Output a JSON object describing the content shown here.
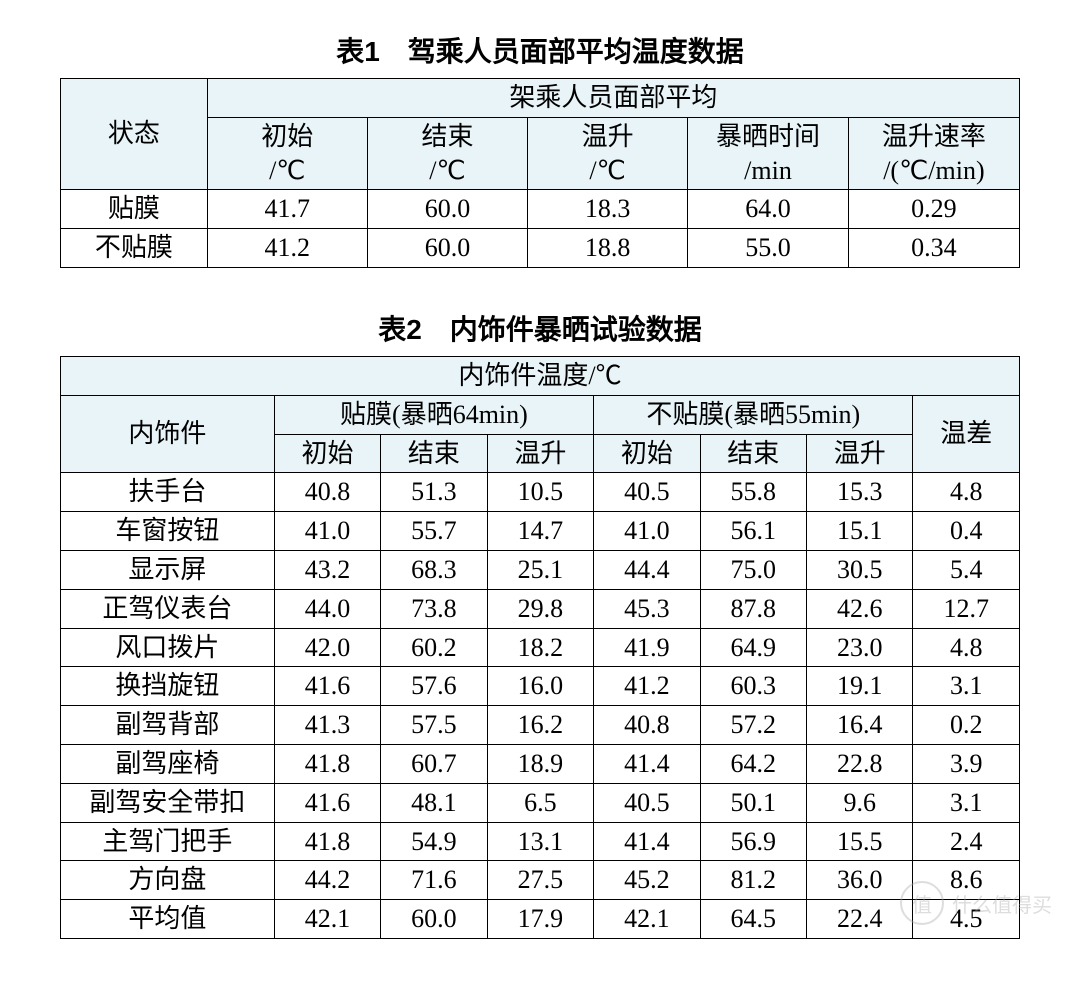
{
  "table1": {
    "title": "表1　驾乘人员面部平均温度数据",
    "header_state": "状态",
    "header_group": "架乘人员面部平均",
    "cols": [
      {
        "l1": "初始",
        "l2": "/℃"
      },
      {
        "l1": "结束",
        "l2": "/℃"
      },
      {
        "l1": "温升",
        "l2": "/℃"
      },
      {
        "l1": "暴晒时间",
        "l2": "/min"
      },
      {
        "l1": "温升速率",
        "l2": "/(℃/min)"
      }
    ],
    "rows": [
      {
        "state": "贴膜",
        "v": [
          "41.7",
          "60.0",
          "18.3",
          "64.0",
          "0.29"
        ]
      },
      {
        "state": "不贴膜",
        "v": [
          "41.2",
          "60.0",
          "18.8",
          "55.0",
          "0.34"
        ]
      }
    ]
  },
  "table2": {
    "title": "表2　内饰件暴晒试验数据",
    "header_group": "内饰件温度/℃",
    "header_item": "内饰件",
    "header_film": "贴膜(暴晒64min)",
    "header_nofilm": "不贴膜(暴晒55min)",
    "header_diff": "温差",
    "subcols": [
      "初始",
      "结束",
      "温升"
    ],
    "rows": [
      {
        "item": "扶手台",
        "a": [
          "40.8",
          "51.3",
          "10.5"
        ],
        "b": [
          "40.5",
          "55.8",
          "15.3"
        ],
        "d": "4.8"
      },
      {
        "item": "车窗按钮",
        "a": [
          "41.0",
          "55.7",
          "14.7"
        ],
        "b": [
          "41.0",
          "56.1",
          "15.1"
        ],
        "d": "0.4"
      },
      {
        "item": "显示屏",
        "a": [
          "43.2",
          "68.3",
          "25.1"
        ],
        "b": [
          "44.4",
          "75.0",
          "30.5"
        ],
        "d": "5.4"
      },
      {
        "item": "正驾仪表台",
        "a": [
          "44.0",
          "73.8",
          "29.8"
        ],
        "b": [
          "45.3",
          "87.8",
          "42.6"
        ],
        "d": "12.7"
      },
      {
        "item": "风口拨片",
        "a": [
          "42.0",
          "60.2",
          "18.2"
        ],
        "b": [
          "41.9",
          "64.9",
          "23.0"
        ],
        "d": "4.8"
      },
      {
        "item": "换挡旋钮",
        "a": [
          "41.6",
          "57.6",
          "16.0"
        ],
        "b": [
          "41.2",
          "60.3",
          "19.1"
        ],
        "d": "3.1"
      },
      {
        "item": "副驾背部",
        "a": [
          "41.3",
          "57.5",
          "16.2"
        ],
        "b": [
          "40.8",
          "57.2",
          "16.4"
        ],
        "d": "0.2"
      },
      {
        "item": "副驾座椅",
        "a": [
          "41.8",
          "60.7",
          "18.9"
        ],
        "b": [
          "41.4",
          "64.2",
          "22.8"
        ],
        "d": "3.9"
      },
      {
        "item": "副驾安全带扣",
        "a": [
          "41.6",
          "48.1",
          "6.5"
        ],
        "b": [
          "40.5",
          "50.1",
          "9.6"
        ],
        "d": "3.1"
      },
      {
        "item": "主驾门把手",
        "a": [
          "41.8",
          "54.9",
          "13.1"
        ],
        "b": [
          "41.4",
          "56.9",
          "15.5"
        ],
        "d": "2.4"
      },
      {
        "item": "方向盘",
        "a": [
          "44.2",
          "71.6",
          "27.5"
        ],
        "b": [
          "45.2",
          "81.2",
          "36.0"
        ],
        "d": "8.6"
      },
      {
        "item": "平均值",
        "a": [
          "42.1",
          "60.0",
          "17.9"
        ],
        "b": [
          "42.1",
          "64.5",
          "22.4"
        ],
        "d": "4.5"
      }
    ]
  },
  "watermark": {
    "icon": "值",
    "text": "什么值得买"
  },
  "style": {
    "header_bg": "#e8f4f8",
    "border_color": "#000000",
    "text_color": "#000000",
    "font_family": "SimSun",
    "title_font": "SimHei",
    "font_size_body": 26,
    "font_size_title": 28
  }
}
